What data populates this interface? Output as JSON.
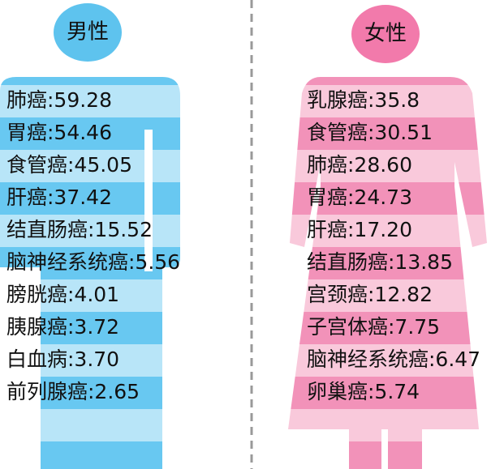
{
  "male": {
    "title": "男性",
    "items": [
      "肺癌:59.28",
      "胃癌:54.46",
      "食管癌:45.05",
      "肝癌:37.42",
      "结直肠癌:15.52",
      "脑神经系统癌:5.56",
      "膀胱癌:4.01",
      "胰腺癌:3.72",
      "白血病:3.70",
      "前列腺癌:2.65"
    ]
  },
  "female": {
    "title": "女性",
    "items": [
      "乳腺癌:35.8",
      "食管癌:30.51",
      "肺癌:28.60",
      "胃癌:24.73",
      "肝癌:17.20",
      "结直肠癌:13.85",
      "宫颈癌:12.82",
      "子宫体癌:7.75",
      "脑神经系统癌:6.47",
      "卵巢癌:5.74"
    ]
  }
}
